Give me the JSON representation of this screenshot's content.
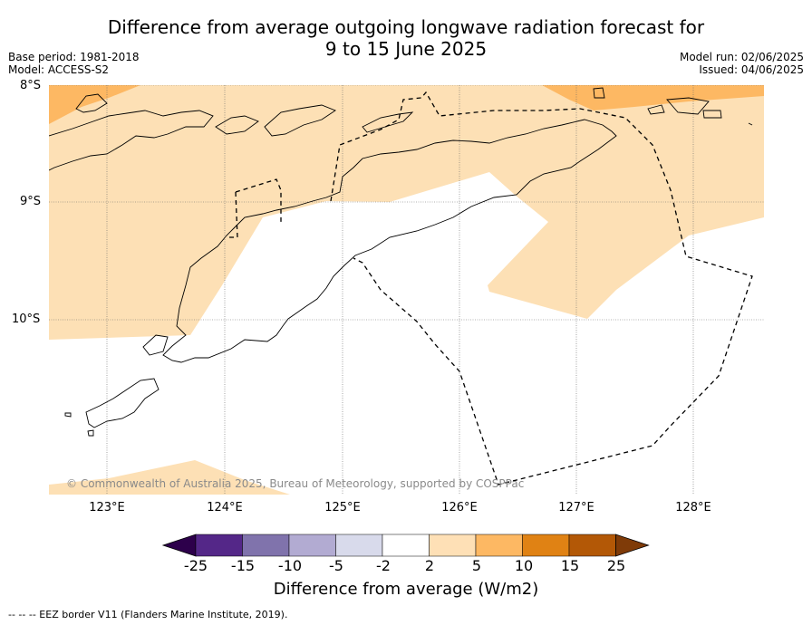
{
  "title": {
    "line1": "Difference from average outgoing longwave radiation forecast for",
    "line2": "9 to 15 June 2025"
  },
  "meta": {
    "base_period": "Base period: 1981-2018",
    "model": "Model: ACCESS-S2",
    "model_run": "Model run: 02/06/2025",
    "issued": "Issued: 04/06/2025"
  },
  "map": {
    "lat_labels": [
      "8°S",
      "9°S",
      "10°S"
    ],
    "lon_labels": [
      "123°E",
      "124°E",
      "125°E",
      "126°E",
      "127°E",
      "128°E"
    ],
    "copyright": "© Commonwealth of Australia 2025, Bureau of Meteorology, supported by COSPPac",
    "gridlines": true,
    "fill_colors": {
      "light": "#fde0b5",
      "medium": "#fdb863",
      "white": "#ffffff"
    }
  },
  "colorbar": {
    "tick_labels": [
      "-25",
      "-15",
      "-10",
      "-5",
      "-2",
      "2",
      "5",
      "10",
      "15",
      "25"
    ],
    "colors": [
      "#2d004b",
      "#542788",
      "#8073ac",
      "#b2abd2",
      "#d8daeb",
      "#ffffff",
      "#fee0b6",
      "#fdb863",
      "#e08214",
      "#b35806",
      "#7f3b08"
    ],
    "label": "Difference from average (W/m2)"
  },
  "footnote": "--  --  -- EEZ border V11 (Flanders Marine Institute, 2019)."
}
